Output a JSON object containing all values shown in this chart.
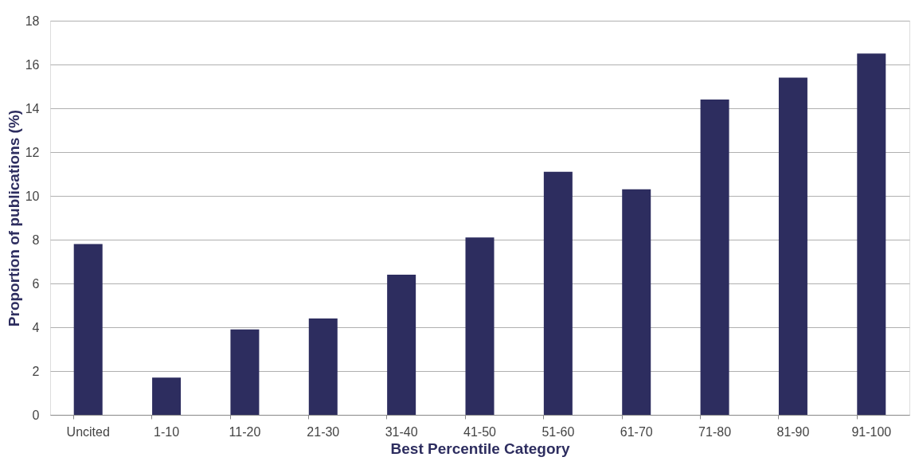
{
  "chart_data": {
    "type": "bar",
    "xlabel": "Best Percentile Category",
    "ylabel": "Proportion of publications (%)",
    "categories": [
      "Uncited",
      "1-10",
      "11-20",
      "21-30",
      "31-40",
      "41-50",
      "51-60",
      "61-70",
      "71-80",
      "81-90",
      "91-100"
    ],
    "values": [
      7.8,
      1.7,
      3.9,
      4.4,
      6.4,
      8.1,
      11.1,
      10.3,
      14.4,
      15.4,
      16.5
    ],
    "color": "#2d2d5f",
    "ylim": [
      0,
      18
    ],
    "yticks": [
      0,
      2,
      4,
      6,
      8,
      10,
      12,
      14,
      16,
      18
    ],
    "grid": "y"
  }
}
